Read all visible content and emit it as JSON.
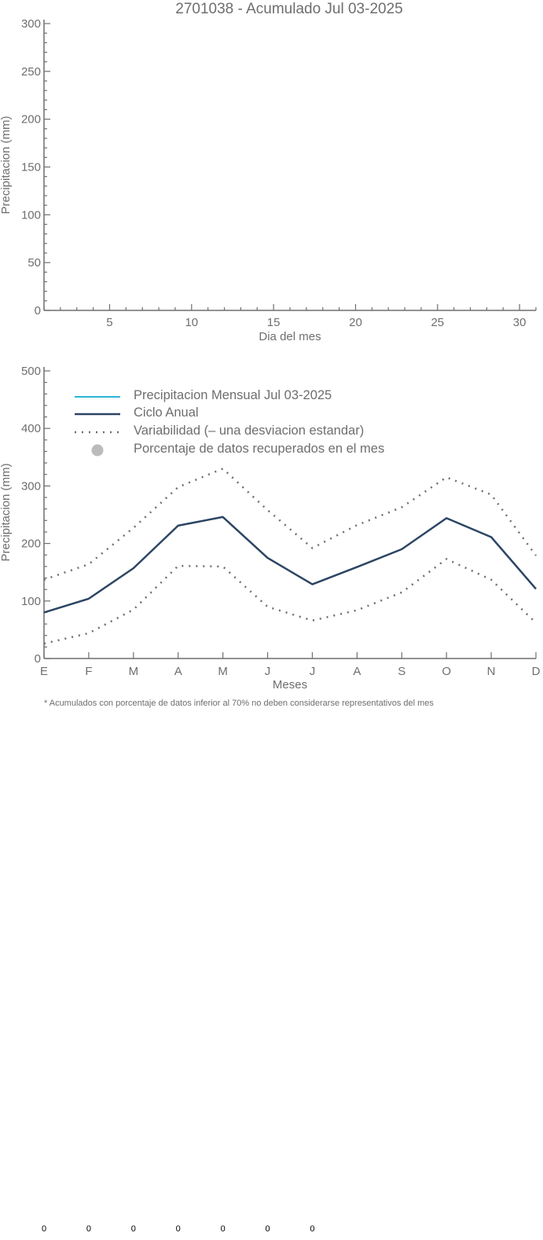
{
  "chart_data": [
    {
      "type": "line",
      "title": "2701038 - Acumulado Jul 03-2025",
      "xlabel": "Dia del mes",
      "ylabel": "Precipitacion (mm)",
      "xlim": [
        1,
        31
      ],
      "ylim": [
        0,
        300
      ],
      "x_ticks": [
        "5",
        "10",
        "15",
        "20",
        "25",
        "30"
      ],
      "y_ticks": [
        "0",
        "50",
        "100",
        "150",
        "200",
        "250",
        "300"
      ],
      "series": []
    },
    {
      "type": "line",
      "xlabel": "Meses",
      "ylabel": "Precipitacion (mm)",
      "ylim": [
        0,
        500
      ],
      "categories": [
        "E",
        "F",
        "M",
        "A",
        "M",
        "J",
        "J",
        "A",
        "S",
        "O",
        "N",
        "D"
      ],
      "y_ticks": [
        "0",
        "100",
        "200",
        "300",
        "400",
        "500"
      ],
      "legend": {
        "placement": "top-left",
        "entries": [
          {
            "label": "Precipitacion Mensual Jul 03-2025",
            "color": "#2bb5d6",
            "style": "solid"
          },
          {
            "label": "Ciclo Anual",
            "color": "#2c4563",
            "style": "solid"
          },
          {
            "label": "Variabilidad (– una desviacion estandar)",
            "color": "#6e6e6e",
            "style": "dotted"
          },
          {
            "label": "Porcentaje de datos recuperados en el mes",
            "color": "#bbbbbb",
            "style": "marker"
          }
        ]
      },
      "series": [
        {
          "name": "Ciclo Anual",
          "color": "#2c4563",
          "style": "solid",
          "values": [
            80,
            104,
            157,
            231,
            246,
            175,
            129,
            159,
            190,
            244,
            211,
            121
          ]
        },
        {
          "name": "Variabilidad (– una desviacion estandar)",
          "color": "#6e6e6e",
          "style": "dotted",
          "values": [
            137,
            164,
            227,
            298,
            330,
            258,
            192,
            232,
            263,
            315,
            285,
            179
          ]
        },
        {
          "color": "#6e6e6e",
          "style": "dotted",
          "values": [
            26,
            44,
            85,
            161,
            160,
            90,
            66,
            84,
            115,
            173,
            137,
            62
          ]
        }
      ],
      "note": "* Acumulados con porcentaje de datos inferior al 70% no deben considerarse representativos del mes",
      "percent_row": [
        "0",
        "0",
        "0",
        "0",
        "0",
        "0",
        "0"
      ]
    }
  ]
}
